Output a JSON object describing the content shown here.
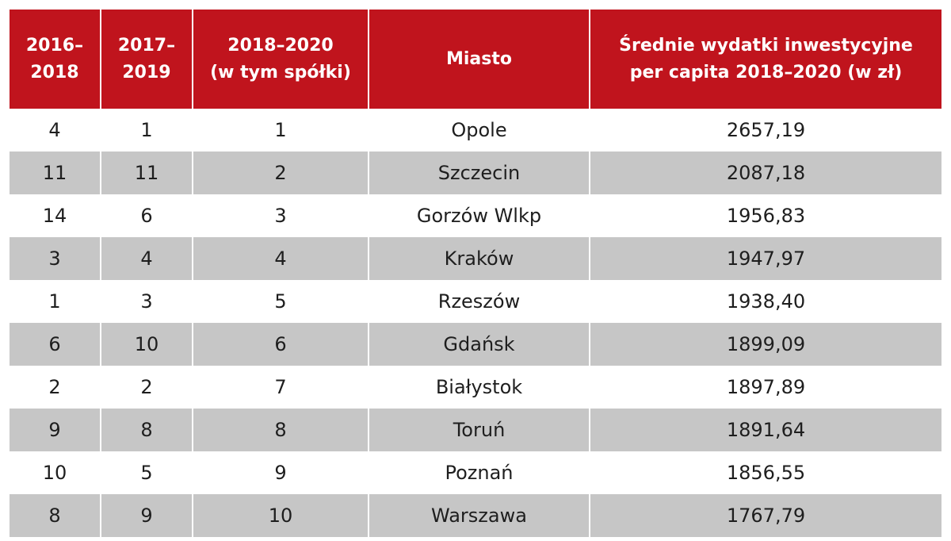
{
  "header": [
    [
      "2016–",
      "2018"
    ],
    [
      "2017–",
      "2019"
    ],
    [
      "2018–2020",
      "(w tym spółki)"
    ],
    [
      "Miasto"
    ],
    [
      "Średnie wydatki inwestycyjne",
      "per capita 2018–2020 (w zł)"
    ]
  ],
  "rows": [
    [
      "4",
      "1",
      "1",
      "Opole",
      "2657,19"
    ],
    [
      "11",
      "11",
      "2",
      "Szczecin",
      "2087,18"
    ],
    [
      "14",
      "6",
      "3",
      "Gorzów Wlkp",
      "1956,83"
    ],
    [
      "3",
      "4",
      "4",
      "Kraków",
      "1947,97"
    ],
    [
      "1",
      "3",
      "5",
      "Rzeszów",
      "1938,40"
    ],
    [
      "6",
      "10",
      "6",
      "Gdańsk",
      "1899,09"
    ],
    [
      "2",
      "2",
      "7",
      "Białystok",
      "1897,89"
    ],
    [
      "9",
      "8",
      "8",
      "Toruń",
      "1891,64"
    ],
    [
      "10",
      "5",
      "9",
      "Poznań",
      "1856,55"
    ],
    [
      "8",
      "9",
      "10",
      "Warszawa",
      "1767,79"
    ]
  ]
}
